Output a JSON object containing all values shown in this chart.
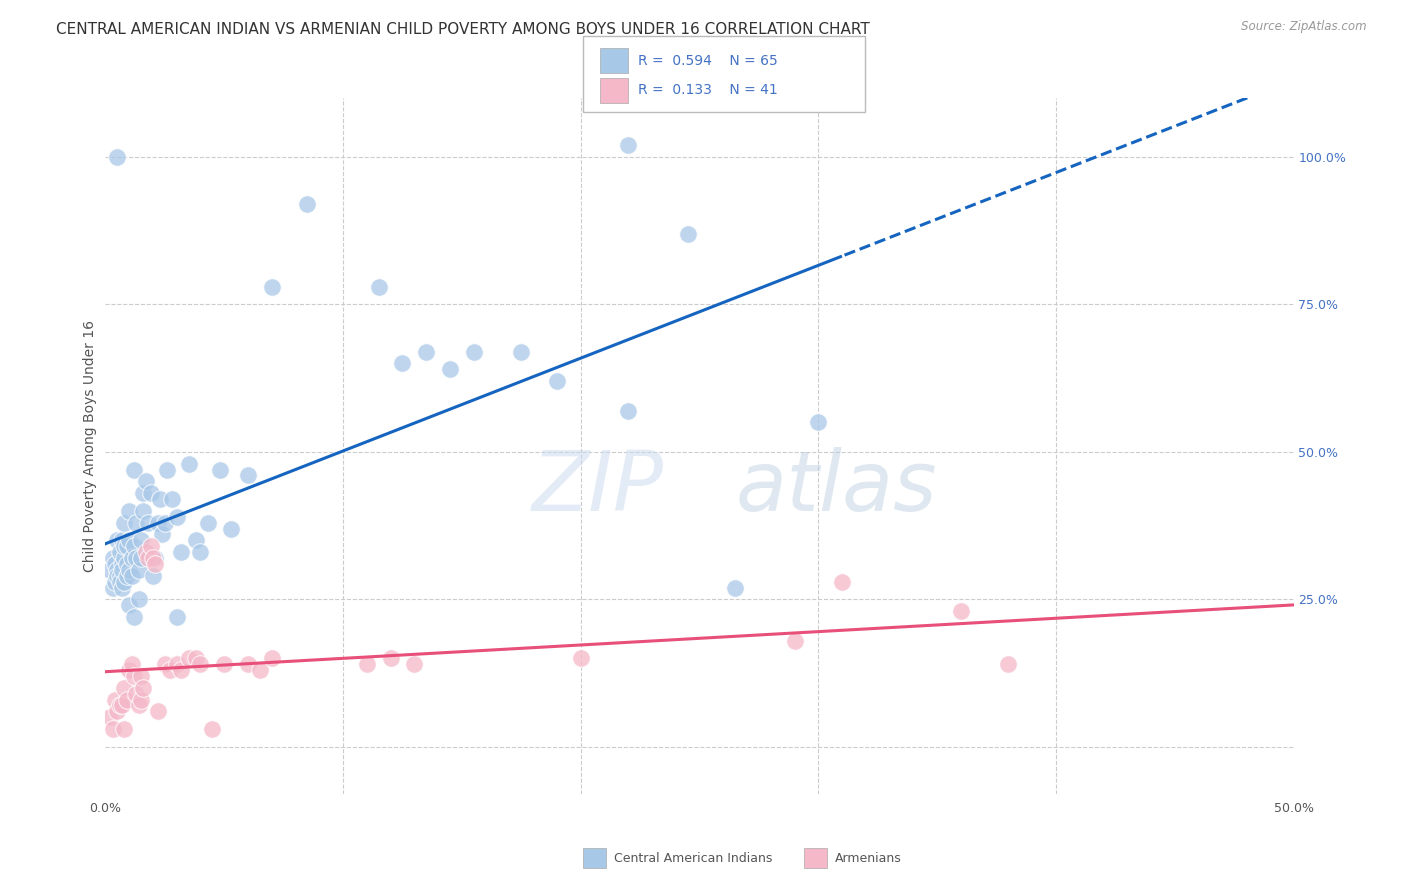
{
  "title": "CENTRAL AMERICAN INDIAN VS ARMENIAN CHILD POVERTY AMONG BOYS UNDER 16 CORRELATION CHART",
  "source": "Source: ZipAtlas.com",
  "ylabel": "Child Poverty Among Boys Under 16",
  "xlim": [
    0.0,
    0.5
  ],
  "ylim": [
    -0.08,
    1.1
  ],
  "watermark": "ZIPatlas",
  "blue_color": "#a8c8e8",
  "blue_line_color": "#1565C0",
  "pink_color": "#f4b8c8",
  "pink_line_color": "#e8507a",
  "right_tick_color": "#4472C4",
  "grid_color": "#cccccc",
  "background_color": "#ffffff",
  "title_fontsize": 11,
  "axis_label_fontsize": 10,
  "tick_fontsize": 9,
  "blue_scatter": [
    [
      0.002,
      0.3
    ],
    [
      0.003,
      0.32
    ],
    [
      0.003,
      0.27
    ],
    [
      0.004,
      0.28
    ],
    [
      0.004,
      0.31
    ],
    [
      0.005,
      0.3
    ],
    [
      0.005,
      0.35
    ],
    [
      0.005,
      0.29
    ],
    [
      0.006,
      0.33
    ],
    [
      0.006,
      0.29
    ],
    [
      0.006,
      0.28
    ],
    [
      0.007,
      0.35
    ],
    [
      0.007,
      0.31
    ],
    [
      0.007,
      0.27
    ],
    [
      0.007,
      0.3
    ],
    [
      0.008,
      0.32
    ],
    [
      0.008,
      0.28
    ],
    [
      0.008,
      0.34
    ],
    [
      0.008,
      0.38
    ],
    [
      0.009,
      0.31
    ],
    [
      0.009,
      0.34
    ],
    [
      0.009,
      0.29
    ],
    [
      0.01,
      0.35
    ],
    [
      0.01,
      0.3
    ],
    [
      0.01,
      0.4
    ],
    [
      0.01,
      0.24
    ],
    [
      0.011,
      0.32
    ],
    [
      0.011,
      0.29
    ],
    [
      0.012,
      0.47
    ],
    [
      0.012,
      0.34
    ],
    [
      0.012,
      0.22
    ],
    [
      0.013,
      0.38
    ],
    [
      0.013,
      0.32
    ],
    [
      0.014,
      0.3
    ],
    [
      0.014,
      0.25
    ],
    [
      0.015,
      0.35
    ],
    [
      0.015,
      0.32
    ],
    [
      0.016,
      0.4
    ],
    [
      0.016,
      0.43
    ],
    [
      0.017,
      0.45
    ],
    [
      0.018,
      0.38
    ],
    [
      0.019,
      0.43
    ],
    [
      0.02,
      0.29
    ],
    [
      0.021,
      0.32
    ],
    [
      0.022,
      0.38
    ],
    [
      0.023,
      0.42
    ],
    [
      0.024,
      0.36
    ],
    [
      0.025,
      0.38
    ],
    [
      0.026,
      0.47
    ],
    [
      0.028,
      0.42
    ],
    [
      0.03,
      0.39
    ],
    [
      0.03,
      0.22
    ],
    [
      0.032,
      0.33
    ],
    [
      0.035,
      0.48
    ],
    [
      0.038,
      0.35
    ],
    [
      0.04,
      0.33
    ],
    [
      0.043,
      0.38
    ],
    [
      0.048,
      0.47
    ],
    [
      0.053,
      0.37
    ],
    [
      0.06,
      0.46
    ],
    [
      0.07,
      0.78
    ],
    [
      0.085,
      0.92
    ],
    [
      0.115,
      0.78
    ],
    [
      0.125,
      0.65
    ],
    [
      0.135,
      0.67
    ],
    [
      0.145,
      0.64
    ],
    [
      0.155,
      0.67
    ],
    [
      0.175,
      0.67
    ],
    [
      0.19,
      0.62
    ],
    [
      0.22,
      0.57
    ],
    [
      0.3,
      0.55
    ],
    [
      0.005,
      1.0
    ],
    [
      0.22,
      1.02
    ],
    [
      0.245,
      0.87
    ],
    [
      0.265,
      0.27
    ]
  ],
  "pink_scatter": [
    [
      0.002,
      0.05
    ],
    [
      0.003,
      0.03
    ],
    [
      0.004,
      0.08
    ],
    [
      0.005,
      0.06
    ],
    [
      0.006,
      0.07
    ],
    [
      0.007,
      0.07
    ],
    [
      0.008,
      0.1
    ],
    [
      0.008,
      0.03
    ],
    [
      0.009,
      0.08
    ],
    [
      0.01,
      0.13
    ],
    [
      0.011,
      0.14
    ],
    [
      0.012,
      0.12
    ],
    [
      0.013,
      0.09
    ],
    [
      0.014,
      0.07
    ],
    [
      0.015,
      0.12
    ],
    [
      0.015,
      0.08
    ],
    [
      0.016,
      0.1
    ],
    [
      0.017,
      0.33
    ],
    [
      0.018,
      0.32
    ],
    [
      0.019,
      0.34
    ],
    [
      0.02,
      0.32
    ],
    [
      0.021,
      0.31
    ],
    [
      0.022,
      0.06
    ],
    [
      0.025,
      0.14
    ],
    [
      0.027,
      0.13
    ],
    [
      0.03,
      0.14
    ],
    [
      0.032,
      0.13
    ],
    [
      0.035,
      0.15
    ],
    [
      0.038,
      0.15
    ],
    [
      0.04,
      0.14
    ],
    [
      0.045,
      0.03
    ],
    [
      0.05,
      0.14
    ],
    [
      0.06,
      0.14
    ],
    [
      0.065,
      0.13
    ],
    [
      0.07,
      0.15
    ],
    [
      0.11,
      0.14
    ],
    [
      0.12,
      0.15
    ],
    [
      0.13,
      0.14
    ],
    [
      0.2,
      0.15
    ],
    [
      0.29,
      0.18
    ],
    [
      0.31,
      0.28
    ],
    [
      0.36,
      0.23
    ],
    [
      0.38,
      0.14
    ]
  ]
}
